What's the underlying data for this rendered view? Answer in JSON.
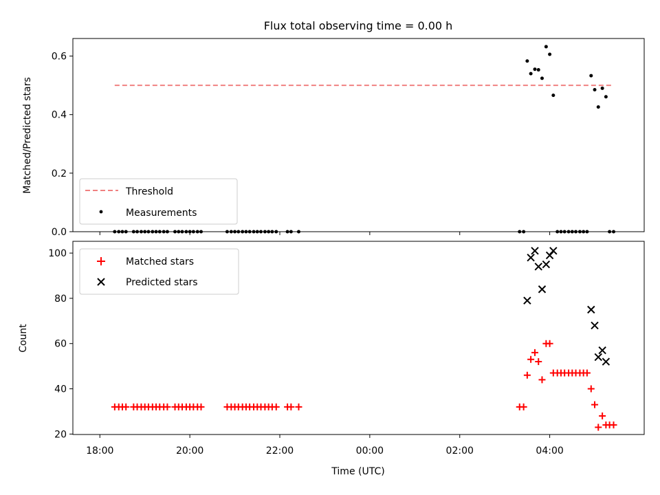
{
  "figure_title": "Flux total observing time = 0.00 h",
  "colors": {
    "threshold": "#f08080",
    "measurement": "#000000",
    "matched": "#ff0000",
    "predicted": "#000000"
  },
  "chart_data": [
    {
      "type": "scatter",
      "panel": "top",
      "title": "Flux total observing time = 0.00 h",
      "xlabel": "",
      "ylabel": "Matched/Predicted stars",
      "x_unit": "hours since 18:00 UTC",
      "xlim": [
        -0.6,
        12.1
      ],
      "ylim": [
        0,
        0.66
      ],
      "yticks": [
        0.0,
        0.2,
        0.4,
        0.6
      ],
      "ytick_labels": [
        "0.0",
        "0.2",
        "0.4",
        "0.6"
      ],
      "legend": {
        "position": "lower-left",
        "entries": [
          "Threshold",
          "Measurements"
        ]
      },
      "threshold": {
        "name": "Threshold",
        "x": [
          0.33,
          11.42
        ],
        "y": 0.5,
        "style": "dashed"
      },
      "series": [
        {
          "name": "Measurements",
          "marker": "dot",
          "points": [
            [
              0.33,
              0
            ],
            [
              0.42,
              0
            ],
            [
              0.5,
              0
            ],
            [
              0.58,
              0
            ],
            [
              0.75,
              0
            ],
            [
              0.83,
              0
            ],
            [
              0.92,
              0
            ],
            [
              1.0,
              0
            ],
            [
              1.08,
              0
            ],
            [
              1.17,
              0
            ],
            [
              1.25,
              0
            ],
            [
              1.33,
              0
            ],
            [
              1.42,
              0
            ],
            [
              1.5,
              0
            ],
            [
              1.67,
              0
            ],
            [
              1.75,
              0
            ],
            [
              1.83,
              0
            ],
            [
              1.92,
              0
            ],
            [
              2.0,
              0
            ],
            [
              2.08,
              0
            ],
            [
              2.17,
              0
            ],
            [
              2.25,
              0
            ],
            [
              2.83,
              0
            ],
            [
              2.92,
              0
            ],
            [
              3.0,
              0
            ],
            [
              3.08,
              0
            ],
            [
              3.17,
              0
            ],
            [
              3.25,
              0
            ],
            [
              3.33,
              0
            ],
            [
              3.42,
              0
            ],
            [
              3.5,
              0
            ],
            [
              3.58,
              0
            ],
            [
              3.67,
              0
            ],
            [
              3.75,
              0
            ],
            [
              3.83,
              0
            ],
            [
              3.92,
              0
            ],
            [
              4.17,
              0
            ],
            [
              4.25,
              0
            ],
            [
              4.42,
              0
            ],
            [
              9.33,
              0
            ],
            [
              9.42,
              0
            ],
            [
              9.5,
              0.583
            ],
            [
              9.58,
              0.54
            ],
            [
              9.67,
              0.555
            ],
            [
              9.75,
              0.553
            ],
            [
              9.83,
              0.524
            ],
            [
              9.92,
              0.632
            ],
            [
              10.0,
              0.606
            ],
            [
              10.08,
              0.466
            ],
            [
              10.17,
              0
            ],
            [
              10.25,
              0
            ],
            [
              10.33,
              0
            ],
            [
              10.42,
              0
            ],
            [
              10.5,
              0
            ],
            [
              10.58,
              0
            ],
            [
              10.67,
              0
            ],
            [
              10.75,
              0
            ],
            [
              10.83,
              0
            ],
            [
              10.92,
              0.533
            ],
            [
              11.0,
              0.485
            ],
            [
              11.08,
              0.426
            ],
            [
              11.17,
              0.49
            ],
            [
              11.25,
              0.461
            ],
            [
              11.33,
              0
            ],
            [
              11.42,
              0
            ]
          ]
        }
      ]
    },
    {
      "type": "scatter",
      "panel": "bottom",
      "title": "",
      "xlabel": "Time (UTC)",
      "ylabel": "Count",
      "x_unit": "hours since 18:00 UTC",
      "xlim": [
        -0.6,
        12.1
      ],
      "ylim": [
        19.8,
        105.2
      ],
      "yticks": [
        20,
        40,
        60,
        80,
        100
      ],
      "ytick_labels": [
        "20",
        "40",
        "60",
        "80",
        "100"
      ],
      "xticks": [
        0,
        2,
        4,
        6,
        8,
        10
      ],
      "xtick_labels": [
        "18:00",
        "20:00",
        "22:00",
        "00:00",
        "02:00",
        "04:00"
      ],
      "legend": {
        "position": "upper-left",
        "entries": [
          "Matched stars",
          "Predicted stars"
        ]
      },
      "series": [
        {
          "name": "Matched stars",
          "marker": "plus",
          "points": [
            [
              0.33,
              32
            ],
            [
              0.42,
              32
            ],
            [
              0.5,
              32
            ],
            [
              0.58,
              32
            ],
            [
              0.75,
              32
            ],
            [
              0.83,
              32
            ],
            [
              0.92,
              32
            ],
            [
              1.0,
              32
            ],
            [
              1.08,
              32
            ],
            [
              1.17,
              32
            ],
            [
              1.25,
              32
            ],
            [
              1.33,
              32
            ],
            [
              1.42,
              32
            ],
            [
              1.5,
              32
            ],
            [
              1.67,
              32
            ],
            [
              1.75,
              32
            ],
            [
              1.83,
              32
            ],
            [
              1.92,
              32
            ],
            [
              2.0,
              32
            ],
            [
              2.08,
              32
            ],
            [
              2.17,
              32
            ],
            [
              2.25,
              32
            ],
            [
              2.83,
              32
            ],
            [
              2.92,
              32
            ],
            [
              3.0,
              32
            ],
            [
              3.08,
              32
            ],
            [
              3.17,
              32
            ],
            [
              3.25,
              32
            ],
            [
              3.33,
              32
            ],
            [
              3.42,
              32
            ],
            [
              3.5,
              32
            ],
            [
              3.58,
              32
            ],
            [
              3.67,
              32
            ],
            [
              3.75,
              32
            ],
            [
              3.83,
              32
            ],
            [
              3.92,
              32
            ],
            [
              4.17,
              32
            ],
            [
              4.25,
              32
            ],
            [
              4.42,
              32
            ],
            [
              9.33,
              32
            ],
            [
              9.42,
              32
            ],
            [
              9.5,
              46
            ],
            [
              9.58,
              53
            ],
            [
              9.67,
              56
            ],
            [
              9.75,
              52
            ],
            [
              9.83,
              44
            ],
            [
              9.92,
              60
            ],
            [
              10.0,
              60
            ],
            [
              10.08,
              47
            ],
            [
              10.17,
              47
            ],
            [
              10.25,
              47
            ],
            [
              10.33,
              47
            ],
            [
              10.42,
              47
            ],
            [
              10.5,
              47
            ],
            [
              10.58,
              47
            ],
            [
              10.67,
              47
            ],
            [
              10.75,
              47
            ],
            [
              10.83,
              47
            ],
            [
              10.92,
              40
            ],
            [
              11.0,
              33
            ],
            [
              11.08,
              23
            ],
            [
              11.17,
              28
            ],
            [
              11.25,
              24
            ],
            [
              11.33,
              24
            ],
            [
              11.42,
              24
            ]
          ]
        },
        {
          "name": "Predicted stars",
          "marker": "x",
          "points": [
            [
              9.5,
              79
            ],
            [
              9.58,
              98
            ],
            [
              9.67,
              101
            ],
            [
              9.75,
              94
            ],
            [
              9.83,
              84
            ],
            [
              9.92,
              95
            ],
            [
              10.0,
              99
            ],
            [
              10.08,
              101
            ],
            [
              10.92,
              75
            ],
            [
              11.0,
              68
            ],
            [
              11.08,
              54
            ],
            [
              11.17,
              57
            ],
            [
              11.25,
              52
            ]
          ]
        }
      ]
    }
  ]
}
